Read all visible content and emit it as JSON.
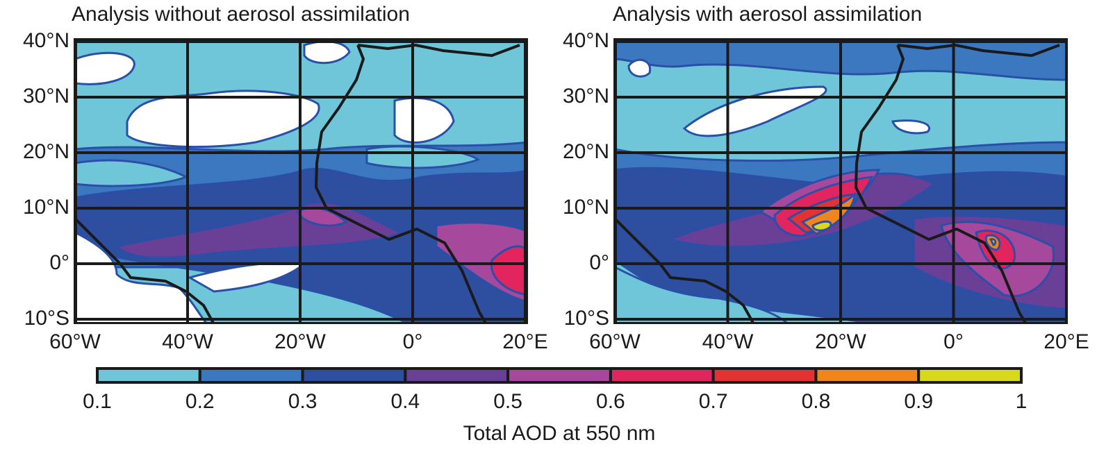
{
  "panels": [
    {
      "title": "Analysis without aerosol assimilation"
    },
    {
      "title": "Analysis with aerosol assimilation"
    }
  ],
  "lat_labels": [
    "40°N",
    "30°N",
    "20°N",
    "10°N",
    "0°",
    "10°S"
  ],
  "lon_labels": [
    "60°W",
    "40°W",
    "20°W",
    "0°",
    "20°E"
  ],
  "colorbar": {
    "label": "Total AOD at 550 nm",
    "ticks": [
      0.1,
      0.2,
      0.3,
      0.4,
      0.5,
      0.6,
      0.7,
      0.8,
      0.9,
      1
    ],
    "colors": [
      "#6ec6d8",
      "#3c78c0",
      "#2e4ea0",
      "#6a3f96",
      "#a6499c",
      "#e2255f",
      "#e23234",
      "#f0841e",
      "#d8d81c"
    ]
  }
}
